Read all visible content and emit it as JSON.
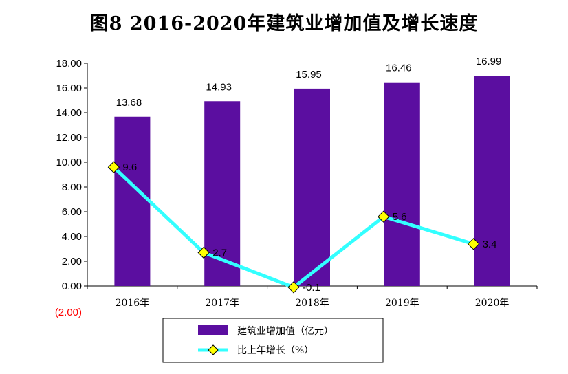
{
  "chart_data": {
    "type": "bar+line",
    "title": "图8   2016-2020年建筑业增加值及增长速度",
    "categories": [
      "2016年",
      "2017年",
      "2018年",
      "2019年",
      "2020年"
    ],
    "series": [
      {
        "name": "建筑业增加值（亿元）",
        "type": "bar",
        "color": "#5b0ea0",
        "values": [
          13.68,
          14.93,
          15.95,
          16.46,
          16.99
        ],
        "labels": [
          "13.68",
          "14.93",
          "15.95",
          "16.46",
          "16.99"
        ]
      },
      {
        "name": "比上年增长（%）",
        "type": "line",
        "color": "#33ffff",
        "marker_color": "#ffff00",
        "values": [
          9.6,
          2.7,
          -0.1,
          5.6,
          3.4
        ],
        "labels": [
          "9.6",
          "2.7",
          "-0.1",
          "5.6",
          "3.4"
        ]
      }
    ],
    "ylim": [
      -2,
      18
    ],
    "yticks": [
      {
        "value": 18,
        "label": "18.00"
      },
      {
        "value": 16,
        "label": "16.00"
      },
      {
        "value": 14,
        "label": "14.00"
      },
      {
        "value": 12,
        "label": "12.00"
      },
      {
        "value": 10,
        "label": "10.00"
      },
      {
        "value": 8,
        "label": "8.00"
      },
      {
        "value": 6,
        "label": "6.00"
      },
      {
        "value": 4,
        "label": "4.00"
      },
      {
        "value": 2,
        "label": "2.00"
      },
      {
        "value": 0,
        "label": "0.00"
      },
      {
        "value": -2,
        "label": "(2.00)"
      }
    ],
    "grid": false,
    "legend": "bottom-center"
  }
}
